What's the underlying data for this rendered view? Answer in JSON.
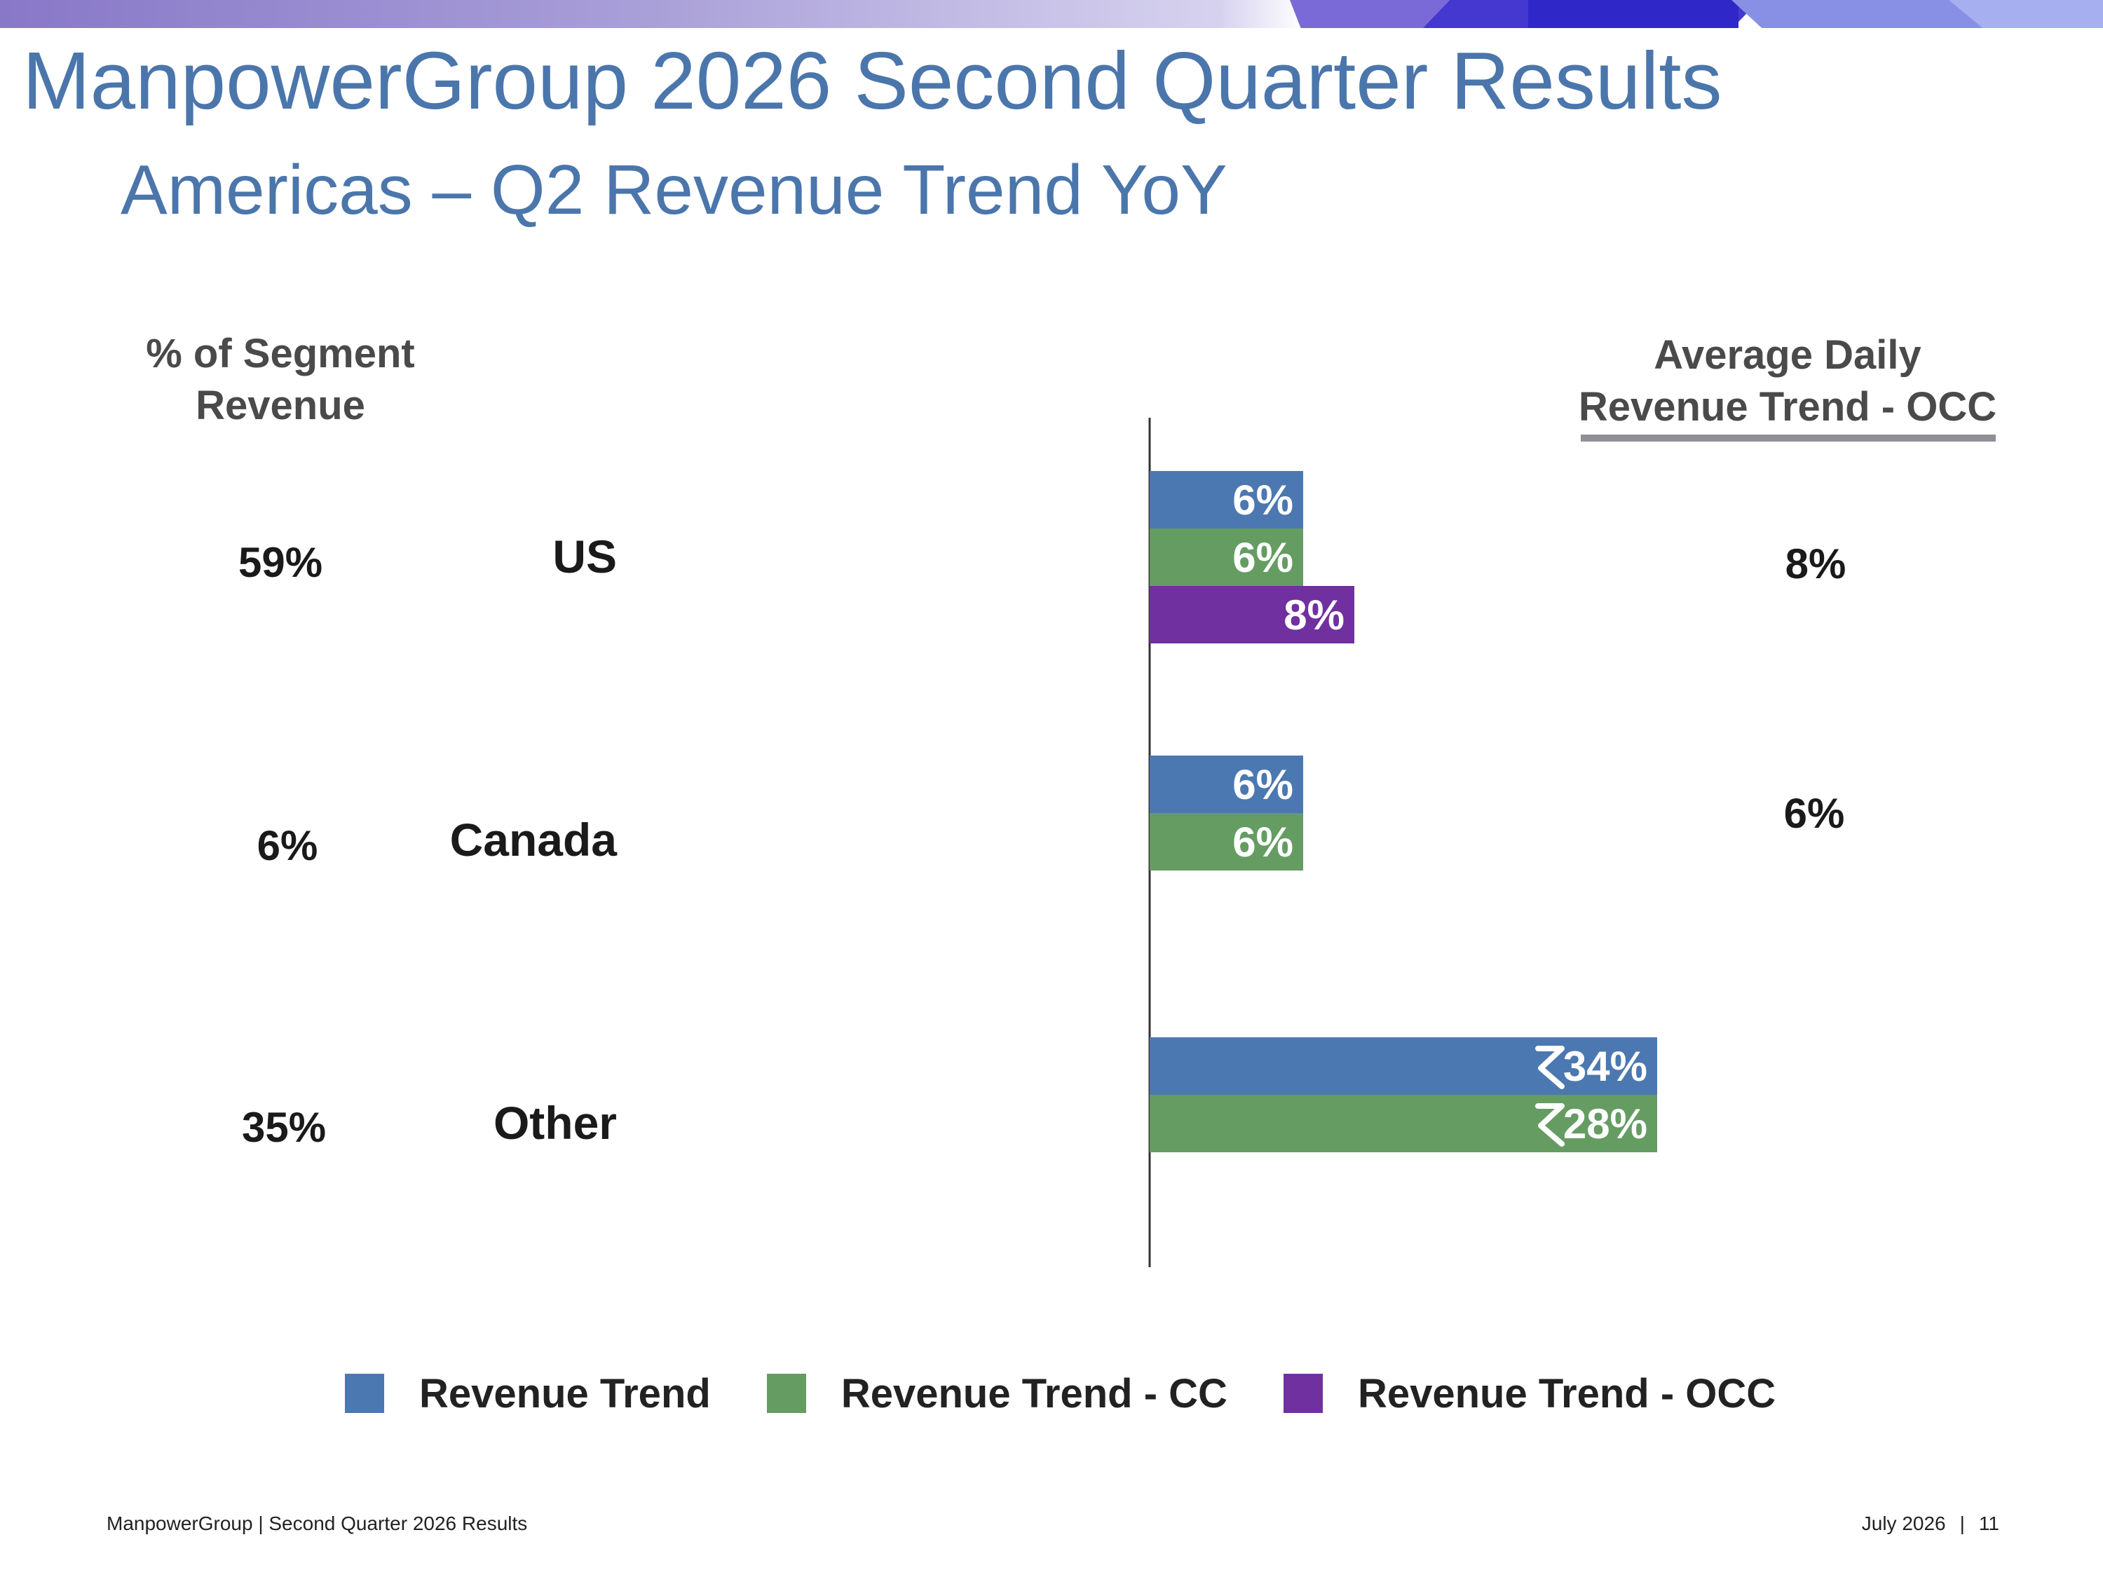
{
  "slide": {
    "title": "ManpowerGroup 2026 Second Quarter Results",
    "subtitle": "Americas – Q2 Revenue Trend YoY"
  },
  "headers": {
    "segment_revenue": [
      "% of Segment",
      "Revenue"
    ],
    "occ_trend": [
      "Average Daily",
      "Revenue Trend - OCC"
    ]
  },
  "rows": [
    {
      "region": "US",
      "segment_pct": "59%",
      "avg_daily_occ": "8%"
    },
    {
      "region": "Canada",
      "segment_pct": "6%",
      "avg_daily_occ": "6%"
    },
    {
      "region": "Other",
      "segment_pct": "35%",
      "avg_daily_occ": ""
    }
  ],
  "chart_data": {
    "type": "bar",
    "orientation": "horizontal",
    "categories": [
      "US",
      "Canada",
      "Other"
    ],
    "series": [
      {
        "name": "Revenue Trend",
        "color": "#4b78b0",
        "values": [
          6,
          6,
          34
        ],
        "labels": [
          "6%",
          "6%",
          "34%"
        ],
        "axis_break": [
          false,
          false,
          true
        ]
      },
      {
        "name": "Revenue Trend - CC",
        "color": "#659c62",
        "values": [
          6,
          6,
          28
        ],
        "labels": [
          "6%",
          "6%",
          "28%"
        ],
        "axis_break": [
          false,
          false,
          true
        ]
      },
      {
        "name": "Revenue Trend - OCC",
        "color": "#7030a0",
        "values": [
          8,
          null,
          null
        ],
        "labels": [
          "8%",
          "",
          ""
        ],
        "axis_break": [
          false,
          false,
          false
        ]
      }
    ],
    "legend_position": "bottom",
    "grid": false
  },
  "colors": {
    "title": "#4b76ac",
    "revenue_trend": "#4b78b0",
    "revenue_trend_cc": "#659c62",
    "revenue_trend_occ": "#7030a0"
  },
  "footer": {
    "left": "ManpowerGroup  |  Second Quarter 2026 Results",
    "date": "July 2026",
    "separator": "|",
    "page": "11"
  }
}
